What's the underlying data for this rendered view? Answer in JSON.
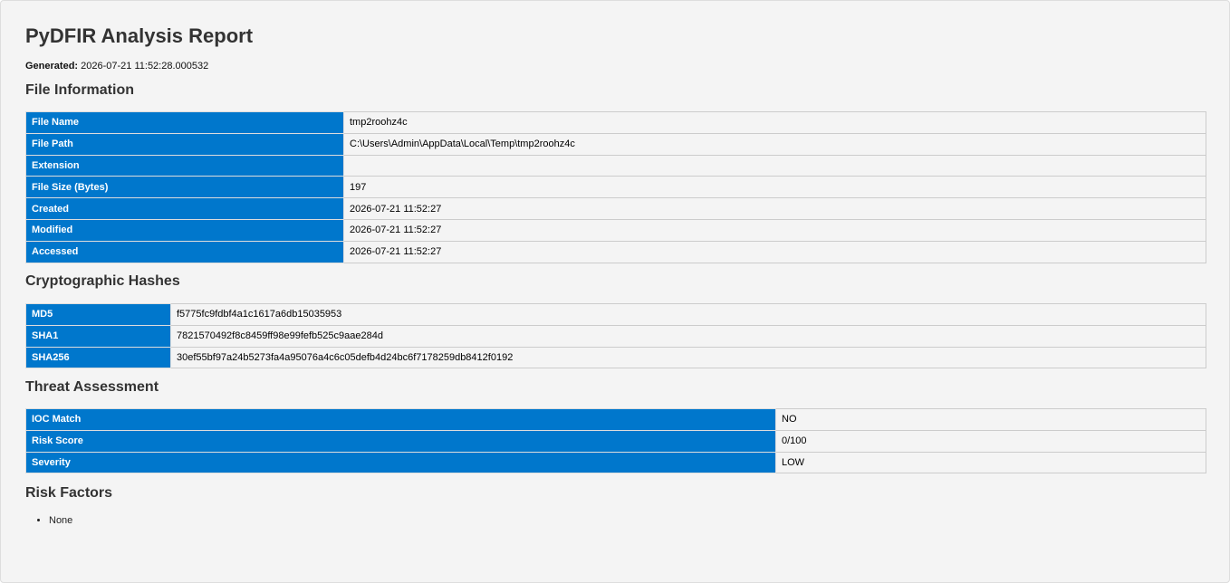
{
  "header": {
    "title": "PyDFIR Analysis Report",
    "generated_label": "Generated:",
    "generated_value": "2026-07-21 11:52:28.000532"
  },
  "sections": [
    {
      "heading": "File Information",
      "rows": [
        [
          "File Name",
          "tmp2roohz4c"
        ],
        [
          "File Path",
          "C:\\Users\\Admin\\AppData\\Local\\Temp\\tmp2roohz4c"
        ],
        [
          "Extension",
          null
        ],
        [
          "File Size (Bytes)",
          "197"
        ],
        [
          "Created",
          "2026-07-21 11:52:27"
        ],
        [
          "Modified",
          "2026-07-21 11:52:27"
        ],
        [
          "Accessed",
          "2026-07-21 11:52:27"
        ]
      ]
    },
    {
      "heading": "Cryptographic Hashes",
      "rows": [
        [
          "MD5",
          "f5775fc9fdbf4a1c1617a6db15035953"
        ],
        [
          "SHA1",
          "7821570492f8c8459ff98e99fefb525c9aae284d"
        ],
        [
          "SHA256",
          "30ef55bf97a24b5273fa4a95076a4c6c05defb4d24bc6f7178259db8412f0192"
        ]
      ]
    },
    {
      "heading": "Threat Assessment",
      "rows": [
        [
          "IOC Match",
          "NO"
        ],
        [
          "Risk Score",
          "0/100"
        ],
        [
          "Severity",
          "LOW"
        ]
      ]
    },
    {
      "heading": "Risk Factors",
      "items": [
        "None"
      ]
    }
  ]
}
